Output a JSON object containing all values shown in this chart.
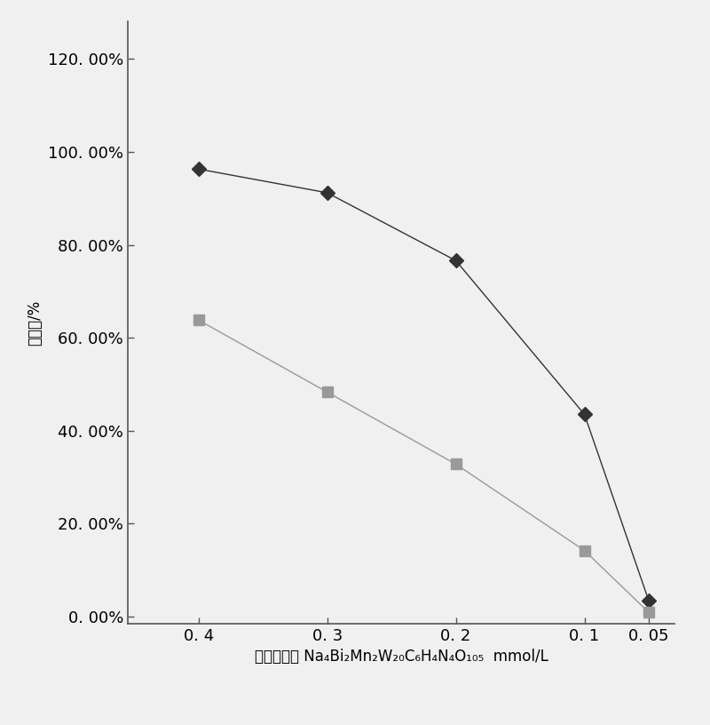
{
  "x": [
    0.4,
    0.3,
    0.2,
    0.1,
    0.05
  ],
  "series1_y": [
    0.963,
    0.912,
    0.766,
    0.435,
    0.034
  ],
  "series2_y": [
    0.638,
    0.483,
    0.328,
    0.142,
    0.009
  ],
  "series1_color": "#333333",
  "series2_color": "#999999",
  "series1_marker": "D",
  "series2_marker": "s",
  "ylabel": "抑制率/%",
  "xlabel_prefix": "抗癌化合物 Na",
  "xlabel_formula": "4",
  "yticks": [
    0.0,
    0.2,
    0.4,
    0.6,
    0.8,
    1.0,
    1.2
  ],
  "ytick_labels": [
    "0. 00%",
    "20. 00%",
    "40. 00%",
    "60. 00%",
    "80. 00%",
    "100. 00%",
    "120. 00%"
  ],
  "xtick_labels": [
    "0. 4",
    "0. 3",
    "0. 2",
    "0. 1",
    "0. 05"
  ],
  "ylim": [
    -0.015,
    1.28
  ],
  "xlim_left": 0.455,
  "xlim_right": 0.03,
  "background_color": "#f0f0f0",
  "plot_bg_color": "#f0f0f0",
  "spine_color": "#555555",
  "tick_fontsize": 13,
  "xlabel_fontsize": 12,
  "ylabel_fontsize": 12
}
